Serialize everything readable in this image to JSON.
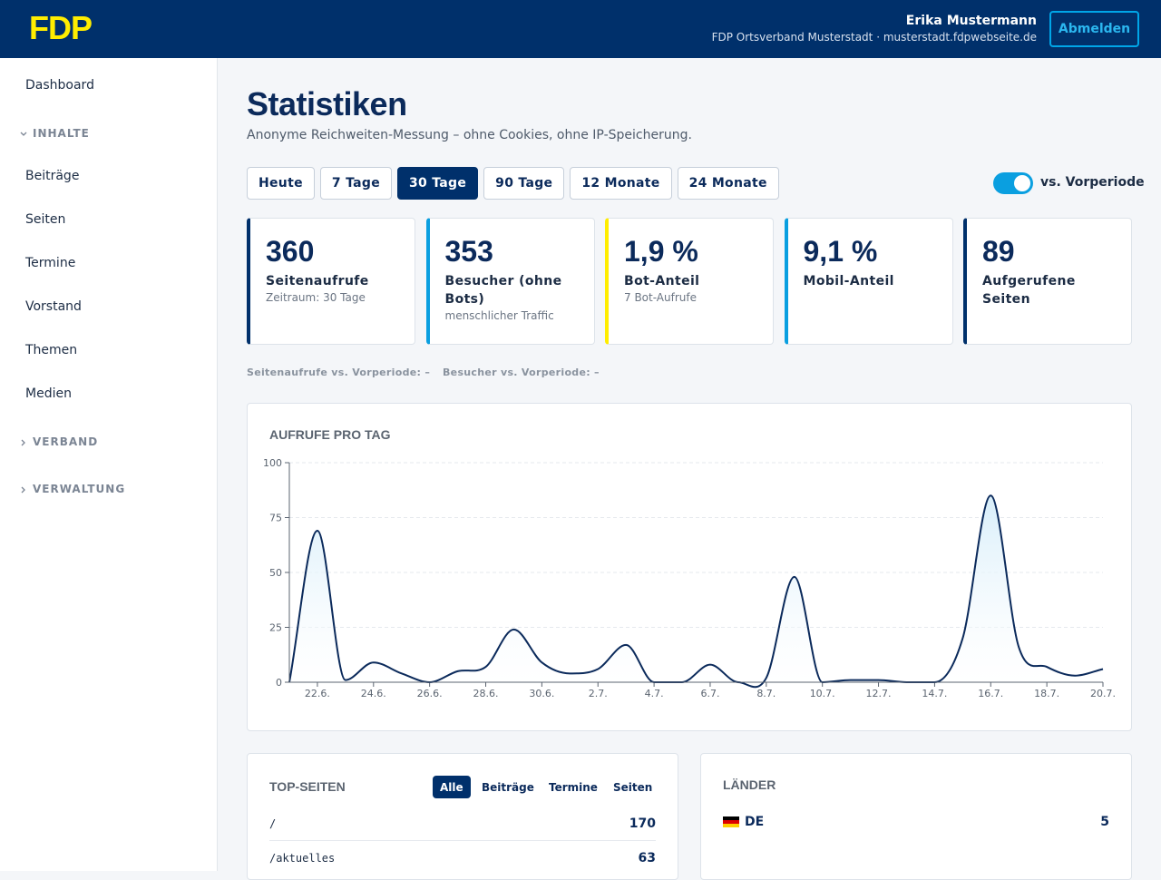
{
  "header": {
    "logo": "FDP",
    "user_name": "Erika Mustermann",
    "org": "FDP Ortsverband Musterstadt · musterstadt.fdpwebseite.de",
    "logout": "Abmelden"
  },
  "sidebar": [
    {
      "kind": "item",
      "label": "Dashboard"
    },
    {
      "kind": "section",
      "label": "INHALTE",
      "open": true
    },
    {
      "kind": "item",
      "label": "Beiträge"
    },
    {
      "kind": "item",
      "label": "Seiten"
    },
    {
      "kind": "item",
      "label": "Termine"
    },
    {
      "kind": "item",
      "label": "Vorstand"
    },
    {
      "kind": "item",
      "label": "Themen"
    },
    {
      "kind": "item",
      "label": "Medien"
    },
    {
      "kind": "section",
      "label": "VERBAND",
      "open": false
    },
    {
      "kind": "section",
      "label": "VERWALTUNG",
      "open": false
    }
  ],
  "page": {
    "title": "Statistiken",
    "subtitle": "Anonyme Reichweiten-Messung – ohne Cookies, ohne IP-Speicherung.",
    "periods": [
      "Heute",
      "7 Tage",
      "30 Tage",
      "90 Tage",
      "12 Monate",
      "24 Monate"
    ],
    "active_period": 2,
    "toggle_label": "vs. Vorperiode",
    "toggle_on": true
  },
  "kpis": [
    {
      "value": "360",
      "label": "Seitenaufrufe",
      "note": "Zeitraum: 30 Tage",
      "color": "#00306b"
    },
    {
      "value": "353",
      "label": "Besucher (ohne Bots)",
      "note": "menschlicher Traffic",
      "color": "#0a9fe0"
    },
    {
      "value": "1,9 %",
      "label": "Bot-Anteil",
      "note": "7 Bot-Aufrufe",
      "color": "#ffed00"
    },
    {
      "value": "9,1 %",
      "label": "Mobil-Anteil",
      "color": "#0a9fe0"
    },
    {
      "value": "89",
      "label": "Aufgerufene Seiten",
      "color": "#00306b"
    }
  ],
  "comparisons": [
    "Seitenaufrufe vs. Vorperiode: –",
    "Besucher vs. Vorperiode: –"
  ],
  "chart_data": {
    "type": "line",
    "title": "AUFRUFE PRO TAG",
    "categories": [
      null,
      "22.6.",
      null,
      "24.6.",
      null,
      "26.6.",
      null,
      "28.6.",
      null,
      "30.6.",
      null,
      "2.7.",
      null,
      "4.7.",
      null,
      "6.7.",
      null,
      "8.7.",
      null,
      "10.7.",
      null,
      "12.7.",
      null,
      "14.7.",
      null,
      "16.7.",
      null,
      "18.7.",
      null,
      "20.7."
    ],
    "values": [
      0,
      69,
      1,
      9,
      4,
      0,
      5,
      7,
      24,
      9,
      4,
      6,
      17,
      0,
      0,
      8,
      0,
      2,
      48,
      0,
      1,
      1,
      0,
      0,
      20,
      85,
      16,
      7,
      3,
      6
    ],
    "color": "#0b2a5b",
    "fill": "#d8eefa",
    "ylim": [
      0,
      100
    ],
    "yticks": [
      0,
      25,
      50,
      75,
      100
    ],
    "grid": true
  },
  "top_pages": {
    "title": "TOP-SEITEN",
    "filters": [
      "Alle",
      "Beiträge",
      "Termine",
      "Seiten"
    ],
    "active_filter": 0,
    "rows": [
      {
        "path": "/",
        "count": 170
      },
      {
        "path": "/aktuelles",
        "count": 63
      }
    ]
  },
  "countries": {
    "title": "LÄNDER",
    "rows": [
      {
        "code": "DE",
        "count": 5
      }
    ]
  }
}
